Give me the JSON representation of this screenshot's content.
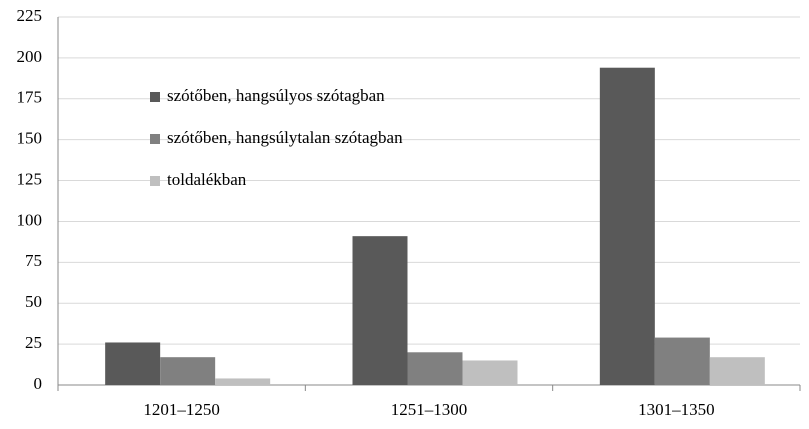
{
  "chart_data": {
    "type": "bar",
    "categories": [
      "1201–1250",
      "1251–1300",
      "1301–1350"
    ],
    "series": [
      {
        "name": "szótőben, hangsúlyos szótagban",
        "color": "#595959",
        "values": [
          26,
          91,
          194
        ]
      },
      {
        "name": "szótőben, hangsúlytalan szótagban",
        "color": "#808080",
        "values": [
          17,
          20,
          29
        ]
      },
      {
        "name": "toldalékban",
        "color": "#bfbfbf",
        "values": [
          4,
          15,
          17
        ]
      }
    ],
    "ylim": [
      0,
      225
    ],
    "yticks": [
      0,
      25,
      50,
      75,
      100,
      125,
      150,
      175,
      200,
      225
    ],
    "grid": true,
    "legend": "upper left"
  }
}
